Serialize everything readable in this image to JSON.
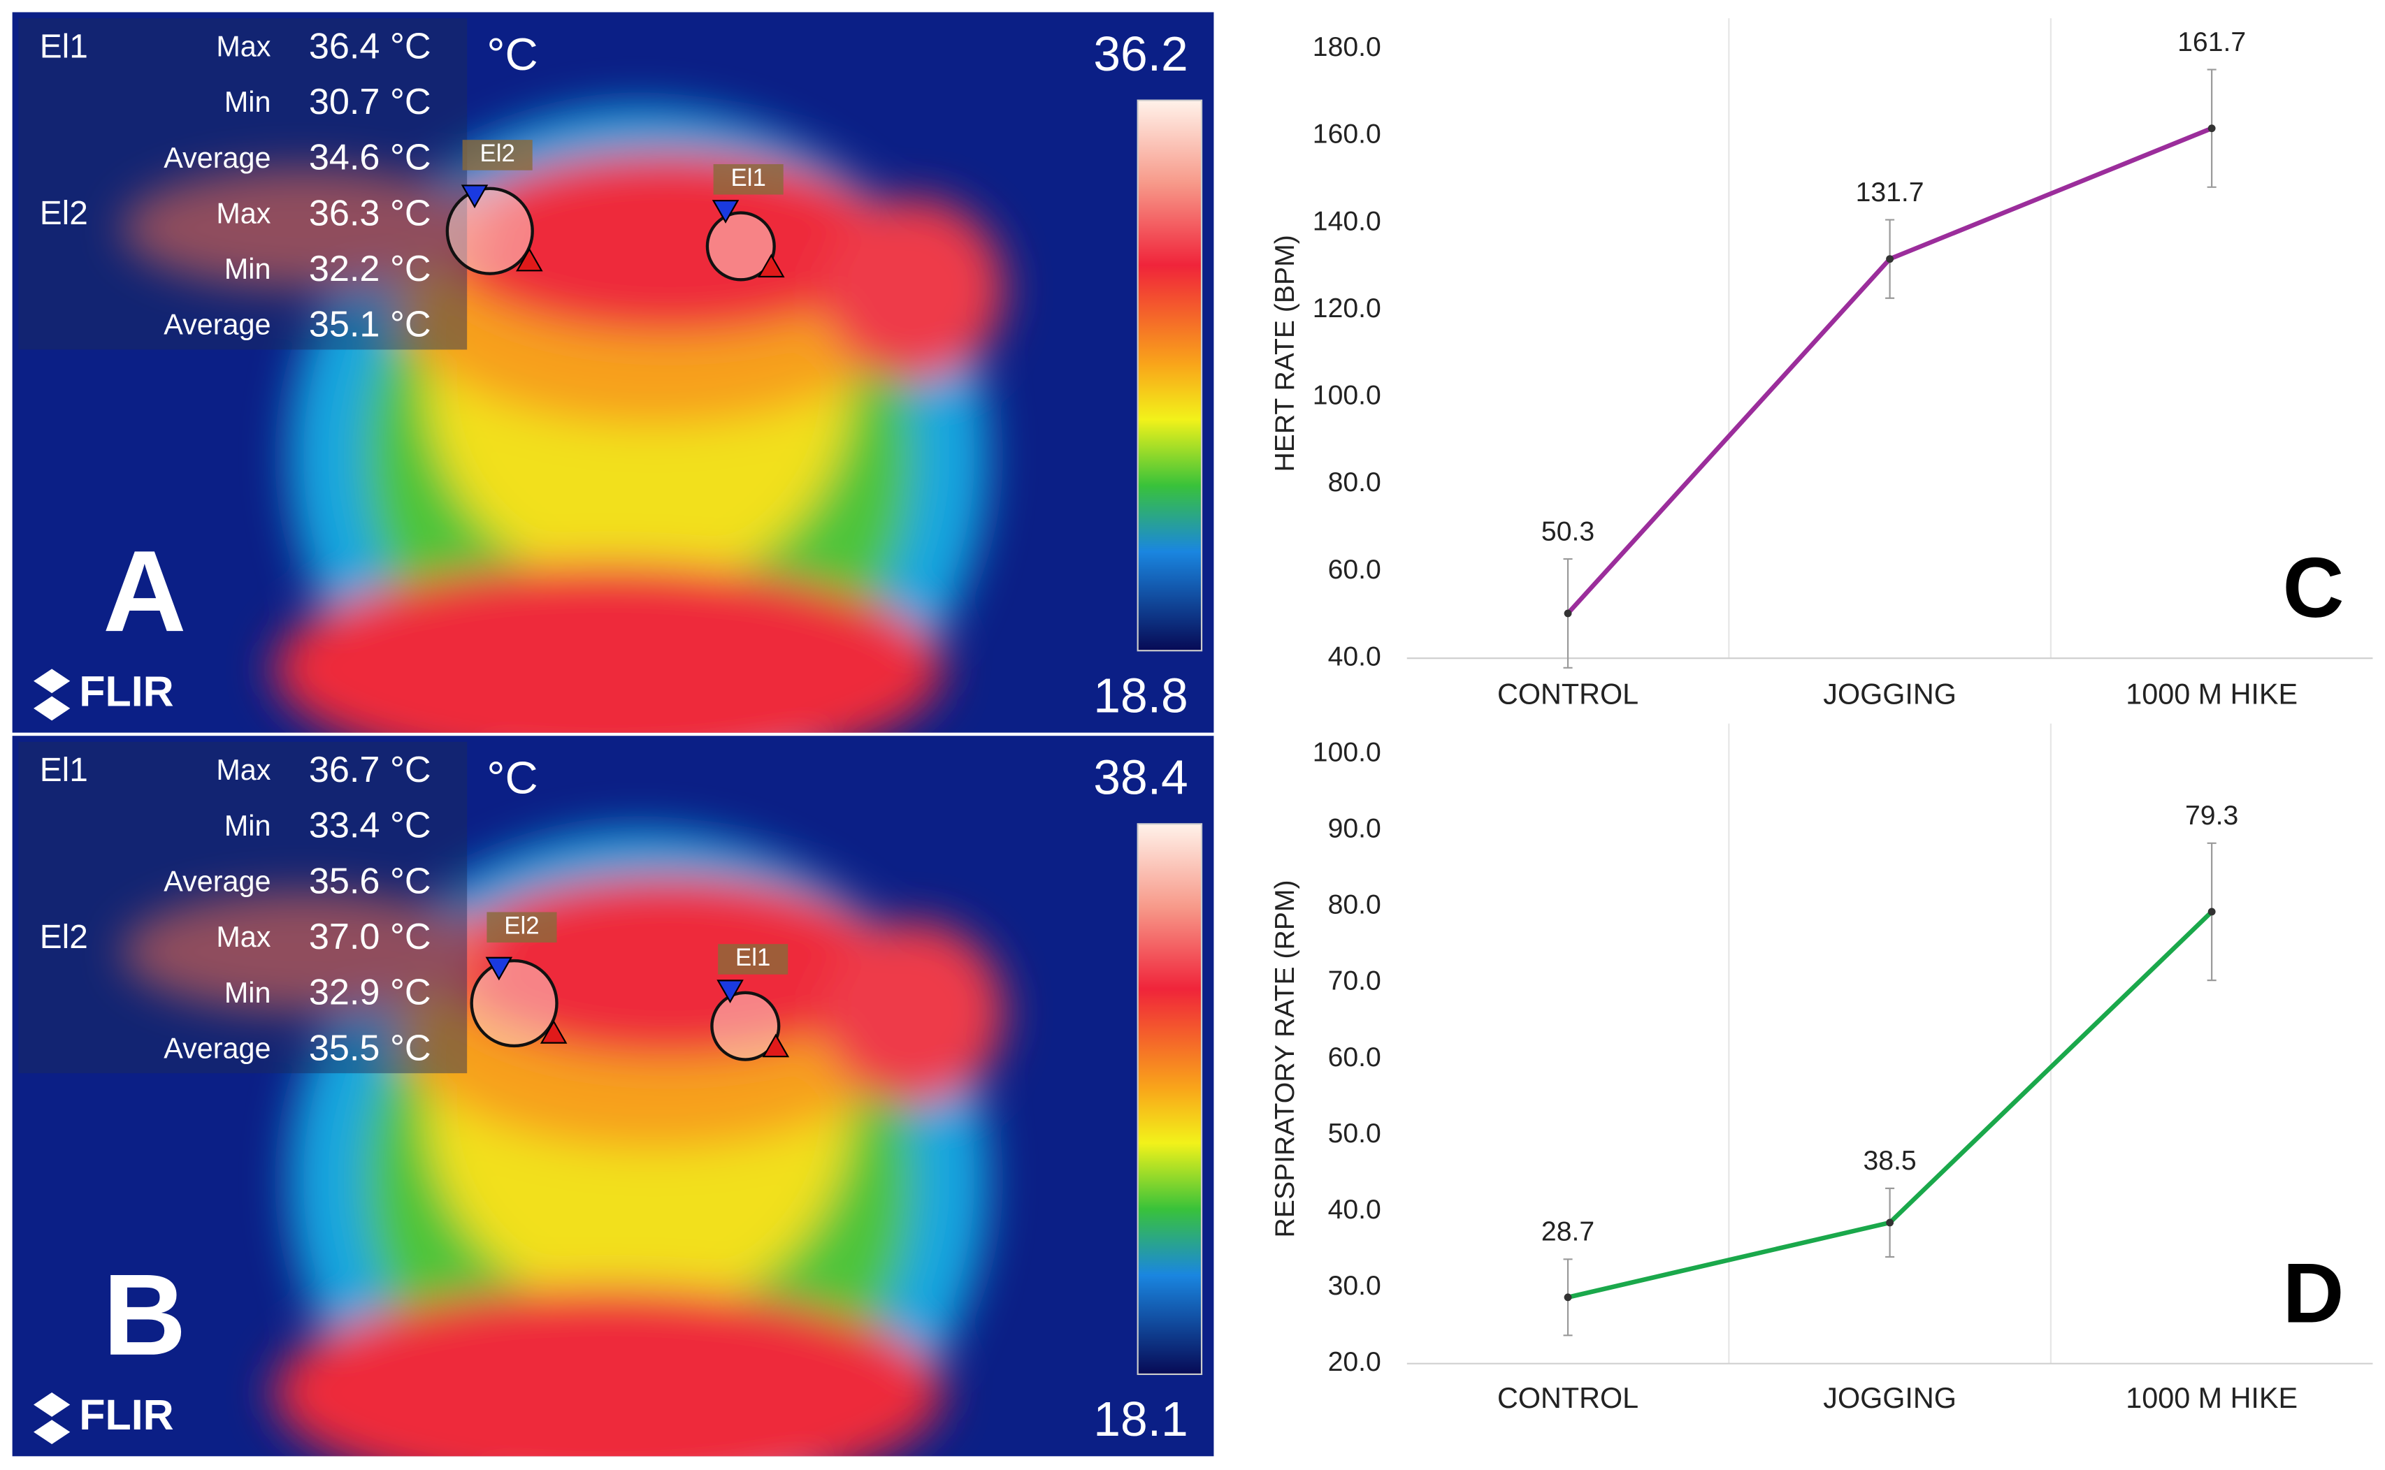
{
  "thermal_images": [
    {
      "panel_label": "A",
      "unit": "°C",
      "scale_max": "36.2",
      "scale_min": "18.8",
      "logo": "FLIR",
      "readouts": [
        {
          "name": "El1",
          "rows": [
            {
              "label": "Max",
              "value": "36.4 °C"
            },
            {
              "label": "Min",
              "value": "30.7 °C"
            },
            {
              "label": "Average",
              "value": "34.6 °C"
            }
          ]
        },
        {
          "name": "El2",
          "rows": [
            {
              "label": "Max",
              "value": "36.3 °C"
            },
            {
              "label": "Min",
              "value": "32.2 °C"
            },
            {
              "label": "Average",
              "value": "35.1 °C"
            }
          ]
        }
      ],
      "markers": [
        "El2",
        "El1"
      ]
    },
    {
      "panel_label": "B",
      "unit": "°C",
      "scale_max": "38.4",
      "scale_min": "18.1",
      "logo": "FLIR",
      "readouts": [
        {
          "name": "El1",
          "rows": [
            {
              "label": "Max",
              "value": "36.7 °C"
            },
            {
              "label": "Min",
              "value": "33.4 °C"
            },
            {
              "label": "Average",
              "value": "35.6 °C"
            }
          ]
        },
        {
          "name": "El2",
          "rows": [
            {
              "label": "Max",
              "value": "37.0 °C"
            },
            {
              "label": "Min",
              "value": "32.9 °C"
            },
            {
              "label": "Average",
              "value": "35.5 °C"
            }
          ]
        }
      ],
      "markers": [
        "El2",
        "El1"
      ]
    }
  ],
  "chart_data": [
    {
      "type": "line",
      "panel_label": "C",
      "y_label": "HERT RATE (BPM)",
      "categories": [
        "CONTROL",
        "JOGGING",
        "1000 M HIKE"
      ],
      "values": [
        50.3,
        131.7,
        161.7
      ],
      "errors": [
        12.5,
        9,
        13.5
      ],
      "color": "#9b2d9b",
      "ylim": [
        40,
        180
      ],
      "yticks": [
        {
          "value": 40,
          "label": "40.0"
        },
        {
          "value": 60,
          "label": "60.0"
        },
        {
          "value": 80,
          "label": "80.0"
        },
        {
          "value": 100,
          "label": "100.0"
        },
        {
          "value": 120,
          "label": "120.0"
        },
        {
          "value": 140,
          "label": "140.0"
        },
        {
          "value": 160,
          "label": "160.0"
        },
        {
          "value": 180,
          "label": "180.0"
        }
      ]
    },
    {
      "type": "line",
      "panel_label": "D",
      "y_label": "RESPIRATORY RATE (RPM)",
      "categories": [
        "CONTROL",
        "JOGGING",
        "1000 M HIKE"
      ],
      "values": [
        28.7,
        38.5,
        79.3
      ],
      "errors": [
        5,
        4.5,
        9
      ],
      "color": "#1aa84b",
      "ylim": [
        20,
        100
      ],
      "yticks": [
        {
          "value": 20,
          "label": "20.0"
        },
        {
          "value": 30,
          "label": "30.0"
        },
        {
          "value": 40,
          "label": "40.0"
        },
        {
          "value": 50,
          "label": "50.0"
        },
        {
          "value": 60,
          "label": "60.0"
        },
        {
          "value": 70,
          "label": "70.0"
        },
        {
          "value": 80,
          "label": "80.0"
        },
        {
          "value": 90,
          "label": "90.0"
        },
        {
          "value": 100,
          "label": "100.0"
        }
      ]
    }
  ]
}
